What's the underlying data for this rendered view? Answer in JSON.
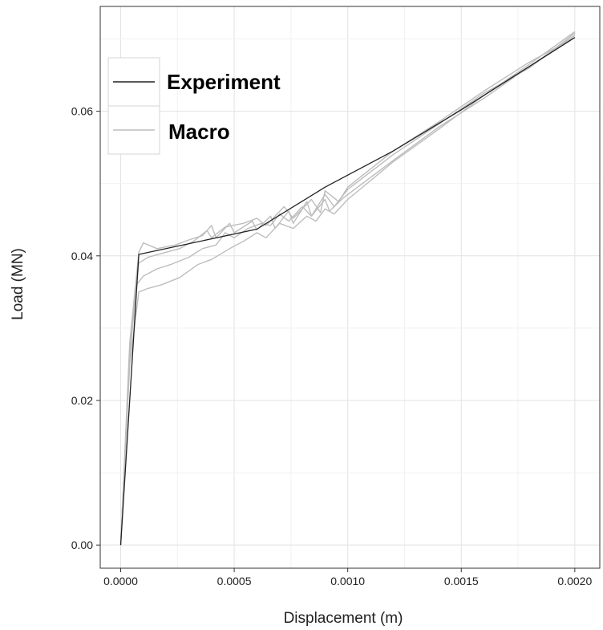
{
  "chart_data": {
    "type": "line",
    "title": "",
    "xlabel": "Displacement (m)",
    "ylabel": "Load (MN)",
    "xlim": [
      -9e-05,
      0.00211
    ],
    "ylim": [
      -0.0032,
      0.0745
    ],
    "x_ticks": [
      0.0,
      0.0005,
      0.001,
      0.0015,
      0.002
    ],
    "x_tick_labels": [
      "0.0000",
      "0.0005",
      "0.0010",
      "0.0015",
      "0.0020"
    ],
    "y_ticks": [
      0.0,
      0.02,
      0.04,
      0.06
    ],
    "y_tick_labels": [
      "0.00",
      "0.02",
      "0.04",
      "0.06"
    ],
    "grid": true,
    "legend_position": "top-left",
    "legend": [
      {
        "label": "Experiment",
        "color": "#222222"
      },
      {
        "label": "Macro",
        "color": "#bdbdbd"
      }
    ],
    "series": [
      {
        "name": "Macro",
        "color": "#bdbdbd",
        "points": [
          [
            0,
            0
          ],
          [
            4e-05,
            0.028
          ],
          [
            8e-05,
            0.0405
          ],
          [
            0.0001,
            0.0418
          ],
          [
            0.00016,
            0.041
          ],
          [
            0.00024,
            0.0415
          ],
          [
            0.0003,
            0.0422
          ],
          [
            0.00036,
            0.0428
          ],
          [
            0.0004,
            0.0442
          ],
          [
            0.00042,
            0.0425
          ],
          [
            0.00048,
            0.0445
          ],
          [
            0.0005,
            0.0432
          ],
          [
            0.00058,
            0.0448
          ],
          [
            0.0006,
            0.0436
          ],
          [
            0.00066,
            0.0455
          ],
          [
            0.00068,
            0.0438
          ],
          [
            0.00074,
            0.0462
          ],
          [
            0.00076,
            0.0445
          ],
          [
            0.00082,
            0.0475
          ],
          [
            0.00084,
            0.0455
          ],
          [
            0.0009,
            0.0485
          ],
          [
            0.00094,
            0.0468
          ],
          [
            0.001,
            0.0492
          ],
          [
            0.0012,
            0.054
          ],
          [
            0.0014,
            0.0582
          ],
          [
            0.0016,
            0.0625
          ],
          [
            0.0018,
            0.066
          ],
          [
            0.002,
            0.0708
          ]
        ]
      },
      {
        "name": "Macro",
        "color": "#bdbdbd",
        "points": [
          [
            0,
            0
          ],
          [
            4e-05,
            0.026
          ],
          [
            7e-05,
            0.036
          ],
          [
            0.0001,
            0.0372
          ],
          [
            0.00016,
            0.0382
          ],
          [
            0.00022,
            0.0388
          ],
          [
            0.0003,
            0.0398
          ],
          [
            0.00036,
            0.041
          ],
          [
            0.00042,
            0.0415
          ],
          [
            0.00046,
            0.0432
          ],
          [
            0.0005,
            0.0425
          ],
          [
            0.00056,
            0.0438
          ],
          [
            0.00062,
            0.0445
          ],
          [
            0.00066,
            0.0442
          ],
          [
            0.0007,
            0.0458
          ],
          [
            0.00074,
            0.0448
          ],
          [
            0.0008,
            0.0468
          ],
          [
            0.00084,
            0.0455
          ],
          [
            0.0009,
            0.0478
          ],
          [
            0.00092,
            0.0462
          ],
          [
            0.00098,
            0.048
          ],
          [
            0.0012,
            0.0532
          ],
          [
            0.0014,
            0.0578
          ],
          [
            0.0016,
            0.0618
          ],
          [
            0.0018,
            0.0662
          ],
          [
            0.002,
            0.0705
          ]
        ]
      },
      {
        "name": "Macro",
        "color": "#bdbdbd",
        "points": [
          [
            0,
            0
          ],
          [
            4e-05,
            0.025
          ],
          [
            8e-05,
            0.035
          ],
          [
            0.00012,
            0.0355
          ],
          [
            0.00018,
            0.036
          ],
          [
            0.00026,
            0.037
          ],
          [
            0.00034,
            0.0388
          ],
          [
            0.0004,
            0.0395
          ],
          [
            0.00048,
            0.041
          ],
          [
            0.00054,
            0.042
          ],
          [
            0.0006,
            0.0432
          ],
          [
            0.00064,
            0.0425
          ],
          [
            0.0007,
            0.0445
          ],
          [
            0.00076,
            0.0438
          ],
          [
            0.00082,
            0.0455
          ],
          [
            0.00086,
            0.0448
          ],
          [
            0.0009,
            0.0465
          ],
          [
            0.00094,
            0.0458
          ],
          [
            0.001,
            0.0478
          ],
          [
            0.0012,
            0.053
          ],
          [
            0.0014,
            0.0575
          ],
          [
            0.0016,
            0.0622
          ],
          [
            0.0018,
            0.0665
          ],
          [
            0.002,
            0.071
          ]
        ]
      },
      {
        "name": "Macro",
        "color": "#bdbdbd",
        "points": [
          [
            0,
            0
          ],
          [
            4e-05,
            0.027
          ],
          [
            8e-05,
            0.039
          ],
          [
            0.00012,
            0.0398
          ],
          [
            0.0002,
            0.0405
          ],
          [
            0.00026,
            0.041
          ],
          [
            0.00032,
            0.042
          ],
          [
            0.00038,
            0.0435
          ],
          [
            0.0004,
            0.0425
          ],
          [
            0.00046,
            0.044
          ],
          [
            0.00054,
            0.0445
          ],
          [
            0.0006,
            0.0452
          ],
          [
            0.00064,
            0.0442
          ],
          [
            0.00072,
            0.0468
          ],
          [
            0.00076,
            0.0452
          ],
          [
            0.00084,
            0.0478
          ],
          [
            0.00088,
            0.046
          ],
          [
            0.0009,
            0.049
          ],
          [
            0.00096,
            0.0475
          ],
          [
            0.001,
            0.0495
          ],
          [
            0.0012,
            0.0545
          ],
          [
            0.0014,
            0.0585
          ],
          [
            0.0016,
            0.0628
          ],
          [
            0.0018,
            0.0668
          ],
          [
            0.002,
            0.0702
          ]
        ]
      },
      {
        "name": "Experiment",
        "color": "#222222",
        "points": [
          [
            0,
            0
          ],
          [
            8e-05,
            0.0402
          ],
          [
            0.0006,
            0.0437
          ],
          [
            0.0009,
            0.0495
          ],
          [
            0.0012,
            0.0545
          ],
          [
            0.0015,
            0.0602
          ],
          [
            0.002,
            0.0702
          ]
        ]
      }
    ]
  }
}
